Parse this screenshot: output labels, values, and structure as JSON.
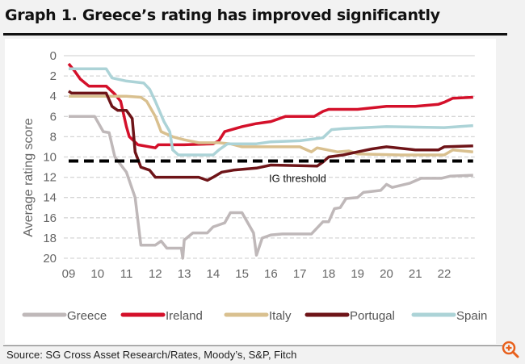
{
  "title": "Graph 1. Greece’s rating has improved significantly",
  "source": "Source: SG Cross Asset Research/Rates, Moody’s, S&P, Fitch",
  "icons": {
    "zoom": "zoom-in-icon",
    "zoom_color": "#e8601c"
  },
  "chart_data": {
    "type": "line",
    "title": "",
    "xlabel": "",
    "ylabel": "Average rating score",
    "y_reversed": true,
    "ylim": [
      0,
      20
    ],
    "xlim": [
      2009,
      2023
    ],
    "yticks": [
      "0",
      "2",
      "4",
      "6",
      "8",
      "10",
      "12",
      "14",
      "16",
      "18",
      "20"
    ],
    "xticks": [
      "09",
      "10",
      "11",
      "12",
      "13",
      "14",
      "15",
      "16",
      "17",
      "18",
      "19",
      "20",
      "21",
      "22"
    ],
    "grid": "horizontal dashed",
    "legend_position": "bottom",
    "threshold": {
      "label": "IG threshold",
      "value": 10.4
    },
    "series": [
      {
        "name": "Greece",
        "color": "#bfb8b9",
        "points": [
          [
            2009,
            6
          ],
          [
            2009.9,
            6
          ],
          [
            2010.2,
            7.5
          ],
          [
            2010.4,
            7.6
          ],
          [
            2010.6,
            10
          ],
          [
            2011,
            11.5
          ],
          [
            2011.3,
            14
          ],
          [
            2011.5,
            18.7
          ],
          [
            2012,
            18.7
          ],
          [
            2012.2,
            18.3
          ],
          [
            2012.4,
            19
          ],
          [
            2012.9,
            19
          ],
          [
            2012.95,
            20
          ],
          [
            2013.0,
            18.2
          ],
          [
            2013.3,
            17.5
          ],
          [
            2013.8,
            17.5
          ],
          [
            2014,
            16.9
          ],
          [
            2014.4,
            16.5
          ],
          [
            2014.6,
            15.5
          ],
          [
            2015,
            15.5
          ],
          [
            2015.2,
            16.5
          ],
          [
            2015.4,
            17.5
          ],
          [
            2015.5,
            19.7
          ],
          [
            2015.7,
            18
          ],
          [
            2016,
            17.7
          ],
          [
            2016.4,
            17.6
          ],
          [
            2017.4,
            17.6
          ],
          [
            2017.6,
            17.0
          ],
          [
            2017.8,
            16.4
          ],
          [
            2018.0,
            16.4
          ],
          [
            2018.2,
            15.1
          ],
          [
            2018.4,
            15.0
          ],
          [
            2018.6,
            14.1
          ],
          [
            2019,
            14
          ],
          [
            2019.2,
            13.5
          ],
          [
            2019.8,
            13.3
          ],
          [
            2020,
            12.7
          ],
          [
            2020.2,
            13
          ],
          [
            2020.8,
            12.6
          ],
          [
            2021.2,
            12.1
          ],
          [
            2021.9,
            12.1
          ],
          [
            2022.2,
            11.9
          ],
          [
            2023,
            11.8
          ]
        ]
      },
      {
        "name": "Ireland",
        "color": "#d4102a",
        "points": [
          [
            2009,
            0.8
          ],
          [
            2009.2,
            1.5
          ],
          [
            2009.4,
            2.3
          ],
          [
            2009.7,
            3
          ],
          [
            2010.3,
            3
          ],
          [
            2010.6,
            3.8
          ],
          [
            2010.8,
            4.5
          ],
          [
            2011,
            7
          ],
          [
            2011.1,
            8
          ],
          [
            2011.4,
            8.8
          ],
          [
            2012,
            9.1
          ],
          [
            2012.1,
            8.8
          ],
          [
            2013,
            8.8
          ],
          [
            2014,
            8.7
          ],
          [
            2014.2,
            8.4
          ],
          [
            2014.4,
            7.5
          ],
          [
            2015,
            7
          ],
          [
            2015.5,
            6.7
          ],
          [
            2016,
            6.5
          ],
          [
            2016.5,
            6
          ],
          [
            2017.5,
            6
          ],
          [
            2017.8,
            5.5
          ],
          [
            2018,
            5.3
          ],
          [
            2019,
            5.3
          ],
          [
            2020,
            5
          ],
          [
            2021,
            5
          ],
          [
            2021.8,
            4.8
          ],
          [
            2022,
            4.6
          ],
          [
            2022.3,
            4.2
          ],
          [
            2023,
            4.1
          ]
        ]
      },
      {
        "name": "Italy",
        "color": "#d9c08f",
        "points": [
          [
            2009,
            4
          ],
          [
            2011,
            4
          ],
          [
            2011.5,
            4.1
          ],
          [
            2011.7,
            4.5
          ],
          [
            2012,
            6
          ],
          [
            2012.2,
            7.5
          ],
          [
            2012.6,
            8
          ],
          [
            2013,
            8.3
          ],
          [
            2013.5,
            8.6
          ],
          [
            2014.2,
            8.6
          ],
          [
            2014.6,
            8.7
          ],
          [
            2015,
            9
          ],
          [
            2017,
            9
          ],
          [
            2017.4,
            9.5
          ],
          [
            2017.6,
            9.1
          ],
          [
            2018.3,
            9.5
          ],
          [
            2018.7,
            9.4
          ],
          [
            2019,
            9.7
          ],
          [
            2020.5,
            9.8
          ],
          [
            2022,
            9.8
          ],
          [
            2022.3,
            9.3
          ],
          [
            2023,
            9.5
          ]
        ]
      },
      {
        "name": "Portugal",
        "color": "#6e1418",
        "points": [
          [
            2009,
            3.5
          ],
          [
            2009.1,
            3.7
          ],
          [
            2010.3,
            3.7
          ],
          [
            2010.5,
            5
          ],
          [
            2010.7,
            5.4
          ],
          [
            2011,
            5.4
          ],
          [
            2011.2,
            6.2
          ],
          [
            2011.3,
            9.5
          ],
          [
            2011.5,
            11
          ],
          [
            2011.8,
            11.3
          ],
          [
            2012,
            12
          ],
          [
            2013.5,
            12
          ],
          [
            2013.8,
            12.3
          ],
          [
            2014,
            12
          ],
          [
            2014.3,
            11.5
          ],
          [
            2014.7,
            11.3
          ],
          [
            2015.5,
            11.1
          ],
          [
            2016,
            10.8
          ],
          [
            2017.6,
            10.9
          ],
          [
            2017.8,
            10.5
          ],
          [
            2018,
            10
          ],
          [
            2018.5,
            9.8
          ],
          [
            2019,
            9.5
          ],
          [
            2019.5,
            9.2
          ],
          [
            2020,
            9
          ],
          [
            2021,
            9.3
          ],
          [
            2021.8,
            9.3
          ],
          [
            2022,
            9
          ],
          [
            2023,
            8.9
          ]
        ]
      },
      {
        "name": "Spain",
        "color": "#acd3d7",
        "points": [
          [
            2009,
            1.3
          ],
          [
            2010.3,
            1.3
          ],
          [
            2010.5,
            2.2
          ],
          [
            2011,
            2.5
          ],
          [
            2011.6,
            2.7
          ],
          [
            2011.8,
            3.3
          ],
          [
            2012,
            4.5
          ],
          [
            2012.3,
            6.5
          ],
          [
            2012.5,
            7.5
          ],
          [
            2012.6,
            9.3
          ],
          [
            2012.8,
            9.8
          ],
          [
            2014,
            9.8
          ],
          [
            2014.2,
            9.3
          ],
          [
            2014.5,
            8.7
          ],
          [
            2015.5,
            8.7
          ],
          [
            2016,
            8.5
          ],
          [
            2017,
            8.4
          ],
          [
            2017.8,
            8.1
          ],
          [
            2018.1,
            7.3
          ],
          [
            2018.5,
            7.2
          ],
          [
            2020,
            7
          ],
          [
            2022,
            7.1
          ],
          [
            2023,
            6.9
          ]
        ]
      }
    ]
  }
}
